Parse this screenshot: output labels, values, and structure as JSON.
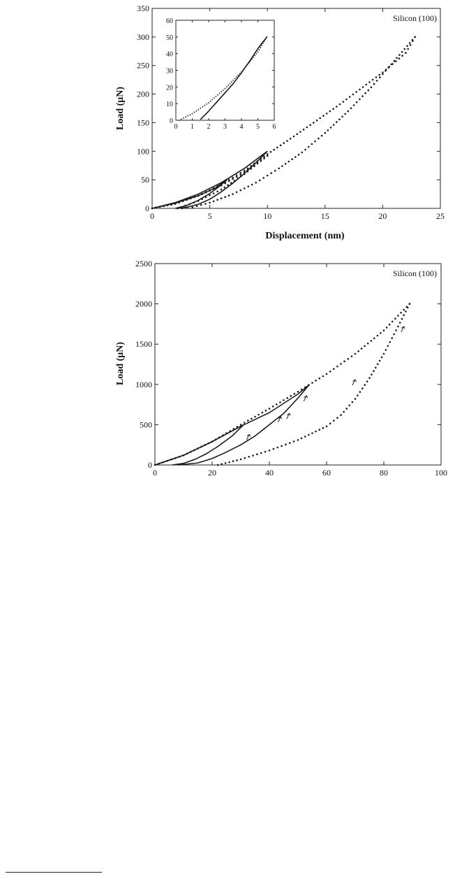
{
  "chart_data": [
    {
      "type": "line",
      "annotation": "Silicon (100)",
      "xlabel": "Displacement  (nm)",
      "ylabel": "Load  (μN)",
      "xlim": [
        0,
        25
      ],
      "ylim": [
        0,
        350
      ],
      "xticks": [
        0,
        5,
        10,
        15,
        20,
        25
      ],
      "yticks": [
        0,
        50,
        100,
        150,
        200,
        250,
        300,
        350
      ],
      "series": [
        {
          "style": "dotted",
          "loading": [
            [
              0,
              0
            ],
            [
              2,
              8
            ],
            [
              4,
              22
            ],
            [
              6,
              42
            ],
            [
              8,
              66
            ],
            [
              10,
              95
            ],
            [
              12,
              122
            ],
            [
              14,
              150
            ],
            [
              16,
              178
            ],
            [
              18,
              208
            ],
            [
              20,
              238
            ],
            [
              22,
              272
            ],
            [
              22.8,
              300
            ]
          ],
          "unloading": [
            [
              22.8,
              300
            ],
            [
              21,
              258
            ],
            [
              19,
              212
            ],
            [
              17,
              170
            ],
            [
              15,
              132
            ],
            [
              13,
              98
            ],
            [
              11,
              70
            ],
            [
              9,
              45
            ],
            [
              7,
              25
            ],
            [
              5,
              10
            ],
            [
              3.5,
              2
            ],
            [
              2.6,
              0
            ]
          ]
        },
        {
          "style": "solid",
          "loading": [
            [
              0,
              0
            ],
            [
              2,
              10
            ],
            [
              4,
              25
            ],
            [
              6,
              45
            ],
            [
              8,
              70
            ],
            [
              10,
              100
            ]
          ],
          "unloading": [
            [
              10,
              100
            ],
            [
              9,
              80
            ],
            [
              8,
              61
            ],
            [
              7,
              44
            ],
            [
              6,
              29
            ],
            [
              5,
              16
            ],
            [
              4,
              7
            ],
            [
              3,
              2
            ],
            [
              2.2,
              0
            ]
          ]
        },
        {
          "style": "solid",
          "loading": [
            [
              0,
              0
            ],
            [
              2,
              9
            ],
            [
              4,
              22
            ],
            [
              5.5,
              36
            ],
            [
              6.5,
              50
            ]
          ],
          "unloading": [
            [
              6.5,
              50
            ],
            [
              5.8,
              38
            ],
            [
              5,
              26
            ],
            [
              4,
              14
            ],
            [
              3,
              5
            ],
            [
              2,
              0
            ]
          ]
        },
        {
          "style": "dotted",
          "loading": [
            [
              0,
              0
            ],
            [
              2,
              8
            ],
            [
              4,
              22
            ],
            [
              6,
              40
            ],
            [
              8,
              63
            ],
            [
              10,
              92
            ]
          ],
          "unloading": [
            [
              10,
              92
            ],
            [
              8,
              60
            ],
            [
              6,
              33
            ],
            [
              4,
              13
            ],
            [
              2.5,
              2
            ],
            [
              2.2,
              0
            ]
          ]
        }
      ]
    },
    {
      "type": "line",
      "role": "inset",
      "xlim": [
        0,
        6
      ],
      "ylim": [
        0,
        60
      ],
      "xticks": [
        0,
        1,
        2,
        3,
        4,
        5,
        6
      ],
      "yticks": [
        0,
        10,
        20,
        30,
        40,
        50,
        60
      ],
      "series": [
        {
          "style": "dotted",
          "loading": [
            [
              0.2,
              0
            ],
            [
              1,
              4
            ],
            [
              2,
              10.5
            ],
            [
              3,
              19
            ],
            [
              4,
              29
            ],
            [
              5,
              41
            ],
            [
              5.55,
              50
            ]
          ]
        },
        {
          "style": "solid",
          "unloading": [
            [
              5.55,
              50
            ],
            [
              5,
              43
            ],
            [
              4.5,
              35.5
            ],
            [
              4,
              28.5
            ],
            [
              3.5,
              22
            ],
            [
              3,
              16.5
            ],
            [
              2.5,
              11
            ],
            [
              2,
              5.5
            ],
            [
              1.5,
              0.5
            ]
          ]
        }
      ]
    },
    {
      "type": "line",
      "annotation": "Silicon (100)",
      "ylabel": "Load  (μN)",
      "xlim": [
        0,
        100
      ],
      "ylim": [
        0,
        2500
      ],
      "xticks": [
        0,
        20,
        40,
        60,
        80,
        100
      ],
      "yticks": [
        0,
        500,
        1000,
        1500,
        2000,
        2500
      ],
      "series": [
        {
          "style": "dotted",
          "loading": [
            [
              0,
              0
            ],
            [
              10,
              120
            ],
            [
              20,
              290
            ],
            [
              30,
              500
            ],
            [
              40,
              700
            ],
            [
              50,
              910
            ],
            [
              60,
              1130
            ],
            [
              70,
              1380
            ],
            [
              80,
              1670
            ],
            [
              89,
              2000
            ]
          ],
          "unloading": [
            [
              89,
              2000
            ],
            [
              85,
              1720
            ],
            [
              80,
              1380
            ],
            [
              75,
              1080
            ],
            [
              70,
              820
            ],
            [
              65,
              620
            ],
            [
              60,
              480
            ],
            [
              50,
              310
            ],
            [
              40,
              180
            ],
            [
              30,
              70
            ],
            [
              22,
              0
            ]
          ]
        },
        {
          "style": "solid",
          "loading": [
            [
              0,
              0
            ],
            [
              10,
              120
            ],
            [
              20,
              290
            ],
            [
              30,
              480
            ],
            [
              40,
              650
            ],
            [
              50,
              880
            ],
            [
              54,
              1000
            ]
          ],
          "unloading": [
            [
              54,
              1000
            ],
            [
              50,
              830
            ],
            [
              45,
              640
            ],
            [
              40,
              500
            ],
            [
              35,
              360
            ],
            [
              30,
              250
            ],
            [
              25,
              160
            ],
            [
              20,
              80
            ],
            [
              15,
              25
            ],
            [
              8,
              0
            ]
          ]
        },
        {
          "style": "solid",
          "loading": [
            [
              0,
              0
            ],
            [
              10,
              120
            ],
            [
              20,
              290
            ],
            [
              31,
              500
            ]
          ],
          "unloading": [
            [
              31,
              500
            ],
            [
              27,
              360
            ],
            [
              22,
              230
            ],
            [
              18,
              140
            ],
            [
              14,
              70
            ],
            [
              10,
              20
            ],
            [
              6,
              0
            ]
          ]
        }
      ]
    }
  ]
}
